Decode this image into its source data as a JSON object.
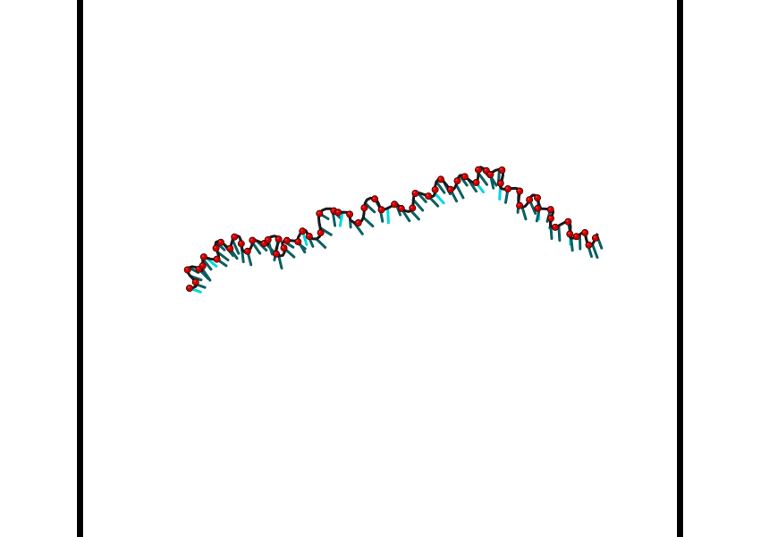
{
  "scene": {
    "background_color": "#ffffff",
    "frame_color": "#000000",
    "backbone_color": "#1a1a1a",
    "phosphate_color": "#cc0000",
    "phosphate_highlight": "#ff3333",
    "base_color_dark": "#0b5f63",
    "base_color_light": "#00d8e0",
    "subject": "dna-strand-molecular-render"
  }
}
